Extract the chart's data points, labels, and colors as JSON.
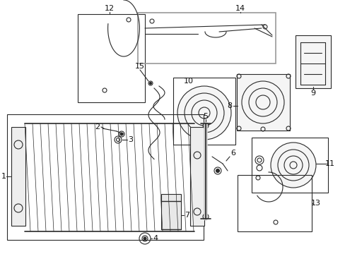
{
  "bg_color": "#ffffff",
  "line_color": "#2a2a2a",
  "gray_box_color": "#999999",
  "label_color": "#111111",
  "fig_w": 4.89,
  "fig_h": 3.6,
  "dpi": 100
}
